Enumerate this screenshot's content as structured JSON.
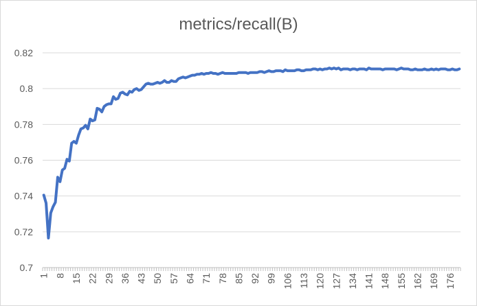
{
  "chart_data": {
    "type": "line",
    "title": "metrics/recall(B)",
    "xlabel": "",
    "ylabel": "",
    "ylim": [
      0.7,
      0.82
    ],
    "y_ticks": [
      "0.7",
      "0.72",
      "0.74",
      "0.76",
      "0.78",
      "0.8",
      "0.82"
    ],
    "x_tick_labels": [
      "1",
      "8",
      "15",
      "22",
      "29",
      "36",
      "43",
      "50",
      "57",
      "64",
      "71",
      "78",
      "85",
      "92",
      "99",
      "106",
      "113",
      "120",
      "127",
      "134",
      "141",
      "148",
      "155",
      "162",
      "169",
      "176"
    ],
    "grid": "horizontal",
    "legend": "none",
    "line_color": "#4472c4",
    "series": [
      {
        "x": [
          1,
          2,
          3,
          4,
          5,
          6,
          7,
          8,
          9,
          10,
          11,
          12,
          13,
          14,
          15,
          16,
          17,
          18,
          19,
          20,
          21,
          22,
          23,
          24,
          25,
          26,
          27,
          28,
          29,
          30,
          31,
          32,
          33,
          34,
          35,
          36,
          37,
          38,
          39,
          40,
          41,
          42,
          43,
          44,
          45,
          46,
          47,
          48,
          49,
          50,
          51,
          52,
          53,
          54,
          55,
          56,
          57,
          58,
          59,
          60,
          61,
          62,
          63,
          64,
          65,
          66,
          67,
          68,
          69,
          70,
          71,
          72,
          73,
          74,
          75,
          76,
          77,
          78,
          79,
          80,
          81,
          82,
          83,
          84,
          85,
          86,
          87,
          88,
          89,
          90,
          91,
          92,
          93,
          94,
          95,
          96,
          97,
          98,
          99,
          100,
          101,
          102,
          103,
          104,
          105,
          106,
          107,
          108,
          109,
          110,
          111,
          112,
          113,
          114,
          115,
          116,
          117,
          118,
          119,
          120,
          121,
          122,
          123,
          124,
          125,
          126,
          127,
          128,
          129,
          130,
          131,
          132,
          133,
          134,
          135,
          136,
          137,
          138,
          139,
          140,
          141,
          142,
          143,
          144,
          145,
          146,
          147,
          148,
          149,
          150,
          151,
          152,
          153,
          154,
          155,
          156,
          157,
          158,
          159,
          160,
          161,
          162,
          163,
          164,
          165,
          166,
          167,
          168,
          169,
          170,
          171,
          172,
          173,
          174,
          175,
          176,
          177,
          178,
          179,
          180
        ],
        "values": [
          0.7405,
          0.736,
          0.7165,
          0.7305,
          0.734,
          0.7365,
          0.7505,
          0.748,
          0.7545,
          0.7555,
          0.7605,
          0.7595,
          0.7695,
          0.7705,
          0.7695,
          0.774,
          0.7775,
          0.778,
          0.7795,
          0.7775,
          0.783,
          0.782,
          0.7825,
          0.789,
          0.7885,
          0.787,
          0.79,
          0.791,
          0.7915,
          0.7915,
          0.7955,
          0.794,
          0.7945,
          0.7975,
          0.798,
          0.797,
          0.7965,
          0.7985,
          0.798,
          0.7995,
          0.8,
          0.799,
          0.7995,
          0.801,
          0.8025,
          0.803,
          0.8025,
          0.8025,
          0.803,
          0.8035,
          0.803,
          0.8035,
          0.8045,
          0.8035,
          0.8035,
          0.8045,
          0.804,
          0.804,
          0.8055,
          0.806,
          0.8065,
          0.806,
          0.8065,
          0.807,
          0.8075,
          0.8075,
          0.808,
          0.808,
          0.8085,
          0.808,
          0.8085,
          0.8085,
          0.809,
          0.8085,
          0.8085,
          0.808,
          0.8085,
          0.809,
          0.8085,
          0.8085,
          0.8085,
          0.8085,
          0.8085,
          0.8085,
          0.809,
          0.809,
          0.809,
          0.809,
          0.8085,
          0.809,
          0.809,
          0.809,
          0.809,
          0.8095,
          0.8095,
          0.809,
          0.8095,
          0.81,
          0.8095,
          0.8095,
          0.81,
          0.81,
          0.81,
          0.8095,
          0.8105,
          0.81,
          0.81,
          0.81,
          0.81,
          0.8105,
          0.8105,
          0.81,
          0.81,
          0.8105,
          0.8105,
          0.8105,
          0.811,
          0.811,
          0.8105,
          0.811,
          0.8105,
          0.811,
          0.811,
          0.8115,
          0.811,
          0.8115,
          0.811,
          0.8115,
          0.8105,
          0.811,
          0.811,
          0.811,
          0.8105,
          0.811,
          0.811,
          0.8105,
          0.811,
          0.811,
          0.811,
          0.8105,
          0.8115,
          0.811,
          0.811,
          0.811,
          0.811,
          0.811,
          0.8105,
          0.811,
          0.811,
          0.811,
          0.811,
          0.811,
          0.8105,
          0.811,
          0.8115,
          0.811,
          0.811,
          0.811,
          0.8105,
          0.8105,
          0.811,
          0.8105,
          0.8105,
          0.8105,
          0.811,
          0.8105,
          0.8105,
          0.811,
          0.8105,
          0.811,
          0.8105,
          0.811,
          0.811,
          0.811,
          0.8105,
          0.8105,
          0.811,
          0.8105,
          0.8105,
          0.811
        ]
      }
    ]
  }
}
